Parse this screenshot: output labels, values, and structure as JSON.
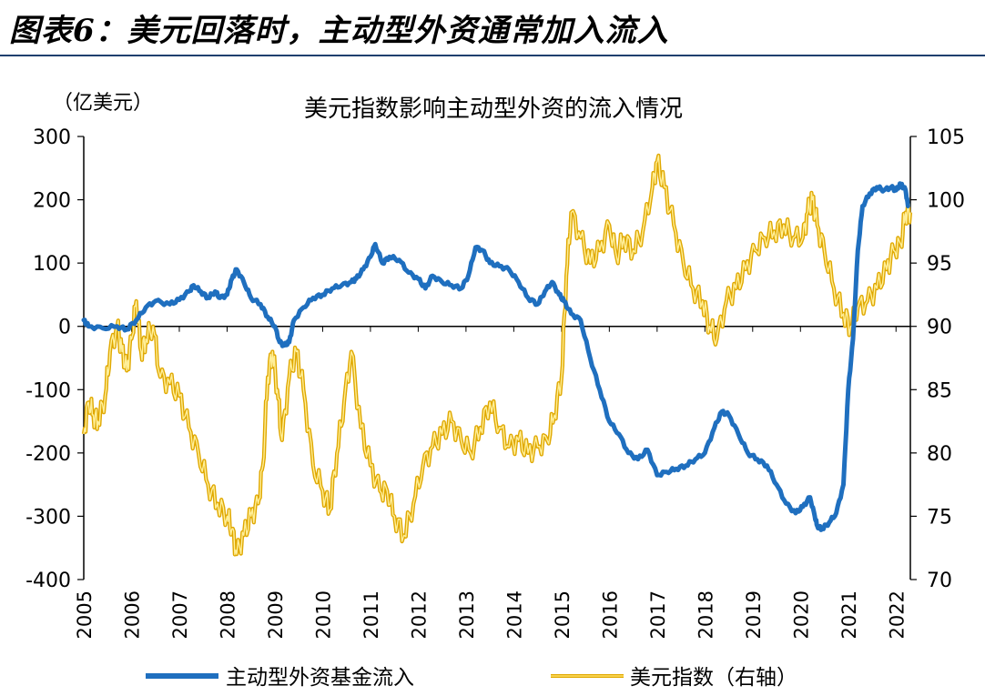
{
  "header": {
    "title": "图表6：美元回落时，主动型外资通常加入流入"
  },
  "chart_data": {
    "type": "line",
    "title": "美元指数影响主动型外资的流入情况",
    "left_unit": "（亿美元）",
    "y_left": {
      "min": -400,
      "max": 300,
      "ticks": [
        300,
        200,
        100,
        0,
        -100,
        -200,
        -300,
        -400
      ]
    },
    "y_right": {
      "min": 70,
      "max": 105,
      "ticks": [
        105,
        100,
        95,
        90,
        85,
        80,
        75,
        70
      ]
    },
    "x_range": [
      2005,
      2022.3
    ],
    "x_ticks": [
      "2005",
      "2006",
      "2007",
      "2008",
      "2009",
      "2010",
      "2011",
      "2012",
      "2013",
      "2014",
      "2015",
      "2016",
      "2017",
      "2018",
      "2019",
      "2020",
      "2021",
      "2022"
    ],
    "series": [
      {
        "name": "主动型外资基金流入",
        "axis": "left",
        "color": "#1f6fbf",
        "x": [
          2005.0,
          2005.1,
          2005.4,
          2005.7,
          2005.9,
          2006.1,
          2006.3,
          2006.5,
          2006.8,
          2007.0,
          2007.2,
          2007.3,
          2007.45,
          2007.6,
          2007.75,
          2007.85,
          2008.0,
          2008.1,
          2008.2,
          2008.35,
          2008.5,
          2008.7,
          2008.85,
          2009.0,
          2009.1,
          2009.2,
          2009.3,
          2009.4,
          2009.6,
          2009.8,
          2010.0,
          2010.2,
          2010.4,
          2010.6,
          2010.7,
          2010.85,
          2011.0,
          2011.1,
          2011.25,
          2011.4,
          2011.6,
          2011.8,
          2012.0,
          2012.15,
          2012.3,
          2012.5,
          2012.7,
          2012.9,
          2013.05,
          2013.2,
          2013.35,
          2013.5,
          2013.7,
          2013.9,
          2014.1,
          2014.3,
          2014.5,
          2014.65,
          2014.8,
          2014.95,
          2015.05,
          2015.2,
          2015.4,
          2015.6,
          2015.8,
          2016.0,
          2016.2,
          2016.4,
          2016.6,
          2016.8,
          2017.0,
          2017.2,
          2017.4,
          2017.6,
          2017.8,
          2018.0,
          2018.2,
          2018.35,
          2018.5,
          2018.7,
          2018.9,
          2019.1,
          2019.3,
          2019.5,
          2019.7,
          2019.9,
          2020.05,
          2020.2,
          2020.3,
          2020.35,
          2020.45,
          2020.6,
          2020.75,
          2020.9,
          2021.0,
          2021.1,
          2021.2,
          2021.3,
          2021.45,
          2021.6,
          2021.75,
          2021.9,
          2022.0,
          2022.1,
          2022.2,
          2022.25
        ],
        "values": [
          10,
          0,
          -3,
          0,
          -5,
          10,
          30,
          40,
          35,
          42,
          55,
          65,
          55,
          45,
          55,
          45,
          50,
          75,
          90,
          70,
          45,
          35,
          15,
          0,
          -25,
          -30,
          -25,
          10,
          30,
          45,
          50,
          60,
          65,
          70,
          75,
          90,
          110,
          130,
          100,
          110,
          105,
          85,
          75,
          60,
          80,
          70,
          65,
          60,
          80,
          125,
          120,
          100,
          95,
          90,
          70,
          45,
          35,
          55,
          70,
          50,
          40,
          20,
          10,
          -50,
          -100,
          -150,
          -170,
          -200,
          -210,
          -195,
          -235,
          -230,
          -225,
          -220,
          -210,
          -200,
          -160,
          -135,
          -140,
          -170,
          -200,
          -210,
          -220,
          -250,
          -280,
          -295,
          -285,
          -270,
          -300,
          -315,
          -320,
          -310,
          -295,
          -250,
          -100,
          -20,
          120,
          190,
          210,
          220,
          215,
          220,
          215,
          225,
          215,
          190
        ],
        "smoothing": "0.58"
      },
      {
        "name": "美元指数（右轴）",
        "axis": "right",
        "color": "#f5c016",
        "x": [
          2005.0,
          2005.1,
          2005.2,
          2005.3,
          2005.45,
          2005.55,
          2005.7,
          2005.8,
          2005.9,
          2006.0,
          2006.1,
          2006.2,
          2006.3,
          2006.45,
          2006.6,
          2006.8,
          2007.0,
          2007.2,
          2007.4,
          2007.6,
          2007.8,
          2008.0,
          2008.1,
          2008.2,
          2008.35,
          2008.5,
          2008.65,
          2008.75,
          2008.85,
          2008.95,
          2009.05,
          2009.15,
          2009.3,
          2009.45,
          2009.6,
          2009.8,
          2010.0,
          2010.15,
          2010.3,
          2010.45,
          2010.6,
          2010.8,
          2011.0,
          2011.2,
          2011.35,
          2011.5,
          2011.7,
          2011.9,
          2012.1,
          2012.3,
          2012.5,
          2012.7,
          2012.9,
          2013.1,
          2013.3,
          2013.5,
          2013.7,
          2013.9,
          2014.1,
          2014.3,
          2014.5,
          2014.7,
          2014.85,
          2015.0,
          2015.1,
          2015.2,
          2015.4,
          2015.6,
          2015.8,
          2016.0,
          2016.15,
          2016.3,
          2016.5,
          2016.7,
          2016.9,
          2017.0,
          2017.15,
          2017.35,
          2017.55,
          2017.75,
          2017.95,
          2018.1,
          2018.25,
          2018.45,
          2018.65,
          2018.85,
          2019.05,
          2019.25,
          2019.45,
          2019.65,
          2019.85,
          2020.05,
          2020.15,
          2020.25,
          2020.35,
          2020.5,
          2020.7,
          2020.9,
          2021.05,
          2021.2,
          2021.4,
          2021.6,
          2021.8,
          2021.95,
          2022.1,
          2022.2,
          2022.3
        ],
        "values": [
          81.5,
          84,
          83,
          82.5,
          84.5,
          88,
          90,
          88,
          86.5,
          89,
          92,
          88,
          89,
          90,
          86,
          85.5,
          84.5,
          82,
          80,
          77.5,
          76,
          75,
          74,
          72,
          73.5,
          75,
          76,
          79,
          86,
          88,
          85,
          81,
          86,
          88,
          85,
          79,
          77,
          75.5,
          80,
          84,
          88,
          82,
          79,
          77,
          77,
          75,
          73.5,
          76,
          79,
          80.5,
          81.5,
          82.5,
          81,
          80,
          82,
          84,
          82,
          80.5,
          81,
          80,
          80.5,
          81,
          83,
          86,
          94,
          99,
          97,
          95,
          96,
          98,
          95.5,
          97,
          96,
          97.5,
          101,
          103,
          101,
          98,
          95,
          93,
          92,
          90,
          89,
          92,
          93,
          94.5,
          96,
          97,
          97.5,
          98,
          97,
          97,
          99,
          100,
          98,
          96,
          93,
          91,
          90,
          91.5,
          92,
          93,
          94.5,
          96,
          96.5,
          99,
          99
        ]
      }
    ]
  },
  "legend": {
    "series1": "主动型外资基金流入",
    "series2": "美元指数（右轴）"
  }
}
